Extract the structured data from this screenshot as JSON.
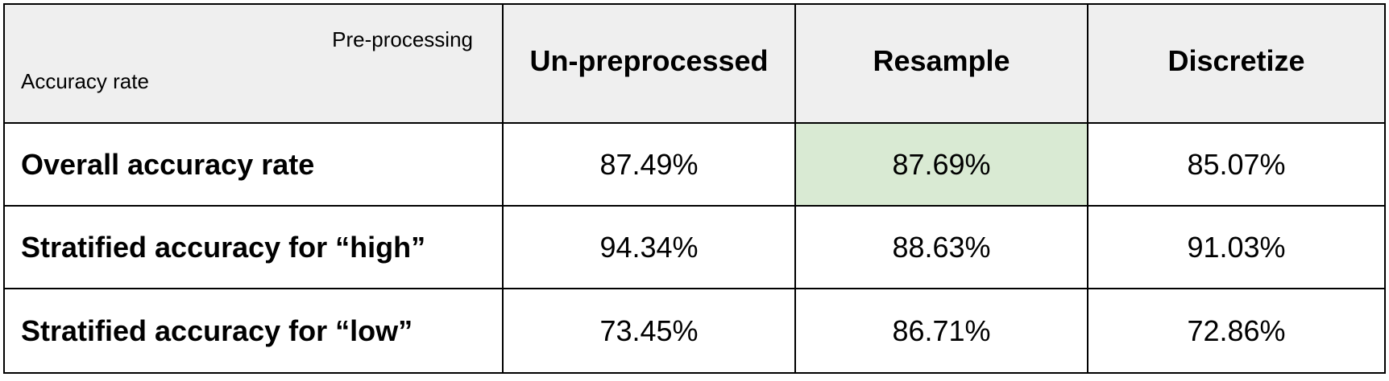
{
  "table": {
    "corner": {
      "top_label": "Pre-processing",
      "bottom_label": "Accuracy rate"
    },
    "columns": [
      "Un-preprocessed",
      "Resample",
      "Discretize"
    ],
    "rows": [
      {
        "label": "Overall accuracy rate",
        "values": [
          "87.49%",
          "87.69%",
          "85.07%"
        ],
        "highlight_index": 1
      },
      {
        "label": "Stratified accuracy for “high”",
        "values": [
          "94.34%",
          "88.63%",
          "91.03%"
        ]
      },
      {
        "label": "Stratified accuracy for “low”",
        "values": [
          "73.45%",
          "86.71%",
          "72.86%"
        ]
      }
    ],
    "colors": {
      "header_bg": "#efefef",
      "highlight_bg": "#d9ead3",
      "border": "#000000"
    }
  }
}
